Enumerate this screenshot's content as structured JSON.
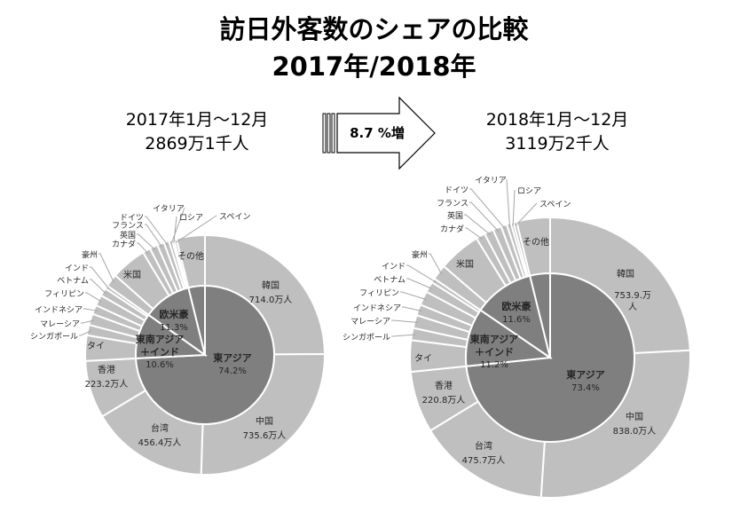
{
  "title": {
    "line1": "訪日外客数のシェアの比較",
    "line2": "2017年/2018年"
  },
  "arrow_label": "8.7 %増",
  "chart_data": [
    {
      "type": "pie",
      "subtype": "sunburst",
      "period": "2017年1月～12月",
      "total": "2869万1千人",
      "inner": [
        {
          "name": "東アジア",
          "label": "東アジア",
          "pct": "74.2%",
          "value": 2129.2
        },
        {
          "name": "東南アジア＋インド",
          "label": "東南アジア\n＋インド",
          "pct": "10.6%",
          "value": 304.9
        },
        {
          "name": "欧米豪",
          "label": "欧米豪",
          "pct": "11.3%",
          "value": 325.4
        },
        {
          "name": "その他",
          "label": "",
          "pct": "",
          "value": 110
        }
      ],
      "outer": [
        {
          "name": "韓国",
          "value": 714.0,
          "value_label": "714.0万人",
          "group": 0
        },
        {
          "name": "中国",
          "value": 735.6,
          "value_label": "735.6万人",
          "group": 0
        },
        {
          "name": "台湾",
          "value": 456.4,
          "value_label": "456.4万人",
          "group": 0
        },
        {
          "name": "香港",
          "value": 223.2,
          "value_label": "223.2万人",
          "group": 0
        },
        {
          "name": "タイ",
          "value": 98.7,
          "group": 1
        },
        {
          "name": "シンガポール",
          "value": 40.4,
          "group": 1
        },
        {
          "name": "マレーシア",
          "value": 44.0,
          "group": 1
        },
        {
          "name": "インドネシア",
          "value": 35.2,
          "group": 1
        },
        {
          "name": "フィリピン",
          "value": 42.4,
          "group": 1
        },
        {
          "name": "ベトナム",
          "value": 30.9,
          "group": 1
        },
        {
          "name": "インド",
          "value": 13.4,
          "group": 1
        },
        {
          "name": "豪州",
          "value": 49.5,
          "group": 2
        },
        {
          "name": "米国",
          "value": 137.5,
          "group": 2
        },
        {
          "name": "カナダ",
          "value": 30.6,
          "group": 2
        },
        {
          "name": "英国",
          "value": 31.0,
          "group": 2
        },
        {
          "name": "フランス",
          "value": 26.9,
          "group": 2
        },
        {
          "name": "ドイツ",
          "value": 19.6,
          "group": 2
        },
        {
          "name": "イタリア",
          "value": 12.6,
          "group": 2
        },
        {
          "name": "ロシア",
          "value": 7.7,
          "group": 2
        },
        {
          "name": "スペイン",
          "value": 10.0,
          "group": 2
        },
        {
          "name": "その他",
          "value": 110,
          "group": 3
        }
      ]
    },
    {
      "type": "pie",
      "subtype": "sunburst",
      "period": "2018年1月～12月",
      "total": "3119万2千人",
      "inner": [
        {
          "name": "東アジア",
          "label": "東アジア",
          "pct": "73.4%",
          "value": 2288.4
        },
        {
          "name": "東南アジア＋インド",
          "label": "東南アジア\n＋インド",
          "pct": "11.2%",
          "value": 348.1
        },
        {
          "name": "欧米豪",
          "label": "欧米豪",
          "pct": "11.6%",
          "value": 362.6
        },
        {
          "name": "その他",
          "label": "",
          "pct": "",
          "value": 120
        }
      ],
      "outer": [
        {
          "name": "韓国",
          "value": 753.9,
          "value_label": "753.9.万\n人",
          "group": 0
        },
        {
          "name": "中国",
          "value": 838.0,
          "value_label": "838.0万人",
          "group": 0
        },
        {
          "name": "台湾",
          "value": 475.7,
          "value_label": "475.7万人",
          "group": 0
        },
        {
          "name": "香港",
          "value": 220.8,
          "value_label": "220.8万人",
          "group": 0
        },
        {
          "name": "タイ",
          "value": 113.2,
          "group": 1
        },
        {
          "name": "シンガポール",
          "value": 43.7,
          "group": 1
        },
        {
          "name": "マレーシア",
          "value": 46.8,
          "group": 1
        },
        {
          "name": "インドネシア",
          "value": 39.7,
          "group": 1
        },
        {
          "name": "フィリピン",
          "value": 50.4,
          "group": 1
        },
        {
          "name": "ベトナム",
          "value": 38.9,
          "group": 1
        },
        {
          "name": "インド",
          "value": 15.4,
          "group": 1
        },
        {
          "name": "豪州",
          "value": 55.2,
          "group": 2
        },
        {
          "name": "米国",
          "value": 152.6,
          "group": 2
        },
        {
          "name": "カナダ",
          "value": 33.1,
          "group": 2
        },
        {
          "name": "英国",
          "value": 33.4,
          "group": 2
        },
        {
          "name": "フランス",
          "value": 30.5,
          "group": 2
        },
        {
          "name": "ドイツ",
          "value": 21.5,
          "group": 2
        },
        {
          "name": "イタリア",
          "value": 14.9,
          "group": 2
        },
        {
          "name": "ロシア",
          "value": 9.5,
          "group": 2
        },
        {
          "name": "スペイン",
          "value": 11.9,
          "group": 2
        },
        {
          "name": "その他",
          "value": 120,
          "group": 3
        }
      ]
    }
  ],
  "colors": {
    "outer": "#bfbfbf",
    "inner": "#7f7f7f",
    "stroke": "#ffffff",
    "text": "#262626",
    "leader": "#a6a6a6"
  }
}
